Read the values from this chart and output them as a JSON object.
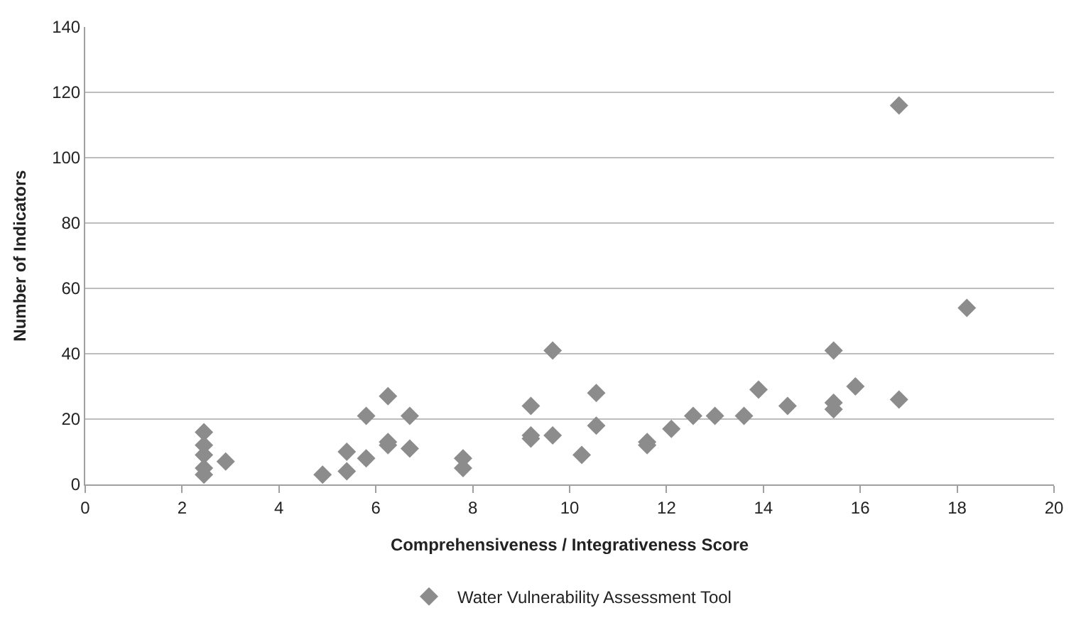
{
  "chart_data": {
    "type": "scatter",
    "xlabel": "Comprehensiveness / Integrativeness Score",
    "ylabel": "Number of Indicators",
    "x": [
      2.45,
      2.45,
      2.45,
      2.45,
      2.45,
      2.9,
      4.9,
      5.4,
      5.4,
      5.8,
      5.8,
      6.25,
      6.25,
      6.25,
      6.7,
      6.7,
      7.8,
      7.8,
      9.2,
      9.2,
      9.2,
      9.65,
      9.65,
      10.25,
      10.55,
      10.55,
      11.6,
      11.6,
      12.1,
      12.55,
      13.0,
      13.6,
      13.9,
      14.5,
      15.45,
      15.45,
      15.45,
      15.9,
      16.8,
      16.8,
      18.2
    ],
    "series": [
      {
        "name": "Water Vulnerability Assessment Tool",
        "color": "#8c8c8c",
        "values": [
          16,
          12,
          9,
          5,
          3,
          7,
          3,
          4,
          10,
          8,
          21,
          27,
          13,
          12,
          21,
          11,
          8,
          5,
          24,
          15,
          14,
          41,
          15,
          9,
          28,
          18,
          13,
          12,
          17,
          21,
          21,
          21,
          29,
          24,
          41,
          25,
          23,
          30,
          116,
          26,
          54
        ]
      }
    ],
    "xlim": [
      0,
      20
    ],
    "xticks": [
      0,
      2,
      4,
      6,
      8,
      10,
      12,
      14,
      16,
      18,
      20
    ],
    "ylim": [
      0,
      140
    ],
    "yticks": [
      0,
      20,
      40,
      60,
      80,
      100,
      120,
      140
    ],
    "grid": "y",
    "legend": "bottom",
    "marker": "diamond"
  }
}
